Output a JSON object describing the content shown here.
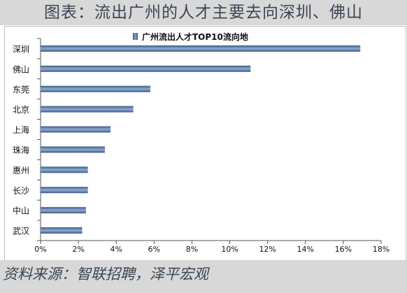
{
  "figure_title": "图表：流出广州的人才主要去向深圳、佛山",
  "source_text": "资料来源：智联招聘，泽平宏观",
  "chart_data": {
    "type": "bar",
    "orientation": "horizontal",
    "title": "",
    "legend": "广州流出人才TOP10流向地",
    "legend_position": "top-center",
    "categories": [
      "深圳",
      "佛山",
      "东莞",
      "北京",
      "上海",
      "珠海",
      "惠州",
      "长沙",
      "中山",
      "武汉"
    ],
    "series": [
      {
        "name": "广州流出人才TOP10流向地",
        "values": [
          16.9,
          11.1,
          5.8,
          4.9,
          3.7,
          3.4,
          2.5,
          2.5,
          2.4,
          2.2
        ],
        "unit": "%"
      }
    ],
    "xlim": [
      0,
      18
    ],
    "xticks": [
      "0%",
      "2%",
      "4%",
      "6%",
      "8%",
      "10%",
      "12%",
      "14%",
      "16%",
      "18%"
    ],
    "grid": false,
    "bar_color": "#5f82b0"
  }
}
